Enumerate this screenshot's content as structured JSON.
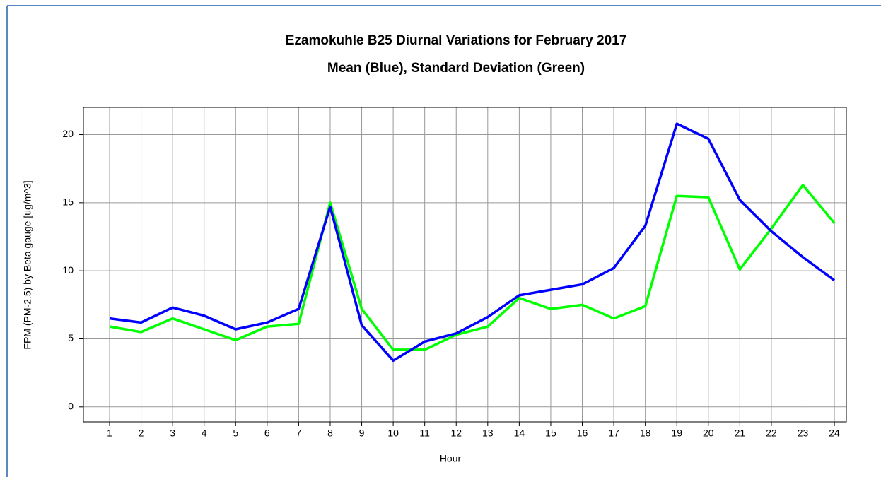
{
  "chart_data": {
    "type": "line",
    "title": "Ezamokuhle B25 Diurnal Variations for February 2017",
    "subtitle": "Mean (Blue), Standard Deviation (Green)",
    "x_label": "Hour",
    "y_label": "FPM (PM-2.5) by Beta gauge  [ug/m^3]",
    "x": [
      1,
      2,
      3,
      4,
      5,
      6,
      7,
      8,
      9,
      10,
      11,
      12,
      13,
      14,
      15,
      16,
      17,
      18,
      19,
      20,
      21,
      22,
      23,
      24
    ],
    "series": [
      {
        "color": "#0000ff",
        "values": [
          6.5,
          6.2,
          7.3,
          6.7,
          5.7,
          6.2,
          7.2,
          14.7,
          6.0,
          3.4,
          4.8,
          5.4,
          6.6,
          8.2,
          8.6,
          9.0,
          10.2,
          13.3,
          20.8,
          19.7,
          15.2,
          12.9,
          11.0,
          9.3
        ]
      },
      {
        "color": "#00ff00",
        "values": [
          5.9,
          5.5,
          6.5,
          5.7,
          4.9,
          5.9,
          6.1,
          15.0,
          7.2,
          4.2,
          4.2,
          5.3,
          5.9,
          8.0,
          7.2,
          7.5,
          6.5,
          7.4,
          15.5,
          15.4,
          10.1,
          13.1,
          16.3,
          13.5
        ]
      }
    ],
    "xlim": [
      0.17,
      24.38
    ],
    "xticks": [
      1,
      2,
      3,
      4,
      5,
      6,
      7,
      8,
      9,
      10,
      11,
      12,
      13,
      14,
      15,
      16,
      17,
      18,
      19,
      20,
      21,
      22,
      23,
      24
    ],
    "ylim": [
      -1.1,
      22
    ],
    "yticks": [
      0,
      5,
      10,
      15,
      20
    ],
    "grid": true
  }
}
